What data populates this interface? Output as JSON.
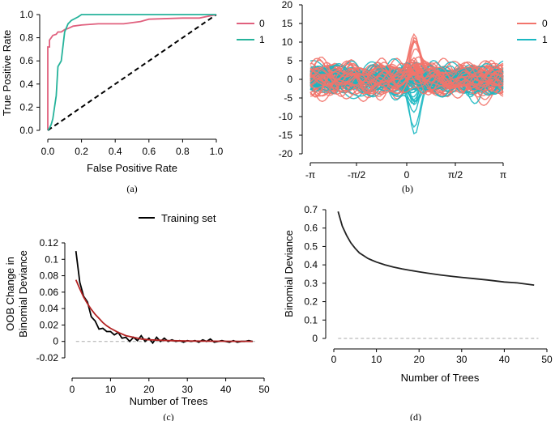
{
  "chart_data": [
    {
      "id": "a",
      "type": "line",
      "caption": "(a)",
      "xlabel": "False Positive Rate",
      "ylabel": "True Positive Rate",
      "xlim": [
        0,
        1
      ],
      "ylim": [
        0,
        1
      ],
      "xticks": [
        "0.0",
        "0.2",
        "0.4",
        "0.6",
        "0.8",
        "1.0"
      ],
      "yticks": [
        "0.0",
        "0.2",
        "0.4",
        "0.6",
        "0.8",
        "1.0"
      ],
      "legend": [
        "0",
        "1"
      ],
      "colors": {
        "0": "#e0607e",
        "1": "#26b39b",
        "diagonal": "#000000"
      },
      "series": [
        {
          "name": "0",
          "x": [
            0,
            0,
            0.01,
            0.01,
            0.02,
            0.03,
            0.05,
            0.06,
            0.08,
            0.1,
            0.12,
            0.15,
            0.2,
            0.3,
            0.45,
            0.55,
            0.6,
            0.8,
            0.9,
            1.0
          ],
          "y": [
            0,
            0.72,
            0.72,
            0.78,
            0.8,
            0.82,
            0.83,
            0.85,
            0.85,
            0.87,
            0.88,
            0.9,
            0.91,
            0.92,
            0.92,
            0.94,
            0.96,
            0.97,
            0.97,
            1.0
          ]
        },
        {
          "name": "1",
          "x": [
            0,
            0.01,
            0.02,
            0.03,
            0.04,
            0.05,
            0.06,
            0.08,
            0.1,
            0.12,
            0.14,
            0.18,
            0.2,
            0.25,
            0.3,
            1.0
          ],
          "y": [
            0,
            0.02,
            0.05,
            0.1,
            0.2,
            0.3,
            0.55,
            0.6,
            0.85,
            0.92,
            0.95,
            0.98,
            1.0,
            1.0,
            1.0,
            1.0
          ]
        }
      ]
    },
    {
      "id": "b",
      "type": "line",
      "caption": "(b)",
      "xticks": [
        "-π",
        "-π/2",
        "0",
        "π/2",
        "π"
      ],
      "ylim": [
        -20,
        20
      ],
      "yticks": [
        "-20",
        "-15",
        "-10",
        "-5",
        "0",
        "5",
        "10",
        "15",
        "20"
      ],
      "legend": [
        "0",
        "1"
      ],
      "colors": {
        "0": "#f2746c",
        "1": "#1bb8c2"
      },
      "note": "Overlaid family of curves for two classes; class 0 spikes near +15 just right of 0, class 1 dips near -15."
    },
    {
      "id": "c",
      "type": "line",
      "caption": "(c)",
      "xlabel": "Number of Trees",
      "ylabel": "OOB Change in Binomial Deviance",
      "xlim": [
        0,
        50
      ],
      "ylim": [
        -0.02,
        0.12
      ],
      "xticks": [
        "0",
        "10",
        "20",
        "30",
        "40",
        "50"
      ],
      "yticks": [
        "-0.02",
        "0",
        "0.02",
        "0.04",
        "0.06",
        "0.08",
        "0.1",
        "0.12"
      ],
      "legend": [
        "Training set"
      ],
      "series": [
        {
          "name": "Training set",
          "color": "#000000",
          "x": [
            1,
            2,
            3,
            4,
            5,
            6,
            7,
            8,
            9,
            10,
            11,
            12,
            13,
            14,
            15,
            16,
            17,
            18,
            19,
            20,
            21,
            22,
            23,
            24,
            25,
            26,
            27,
            28,
            29,
            30,
            31,
            32,
            33,
            34,
            35,
            36,
            37,
            38,
            39,
            40,
            41,
            42,
            43,
            44,
            45,
            46,
            47
          ],
          "y": [
            0.11,
            0.072,
            0.055,
            0.048,
            0.03,
            0.025,
            0.015,
            0.016,
            0.012,
            0.012,
            0.008,
            0.011,
            0.004,
            0.005,
            0.0,
            0.005,
            0.001,
            0.007,
            0.0,
            0.004,
            -0.002,
            0.005,
            0.0,
            0.004,
            0.0,
            0.002,
            0.0,
            0.001,
            -0.001,
            0.001,
            0.0,
            0.001,
            -0.001,
            0.002,
            0.0,
            0.003,
            -0.001,
            0.0,
            0.001,
            0.0,
            -0.001,
            0.001,
            -0.001,
            0.0,
            0.0,
            0.001,
            0.0
          ]
        },
        {
          "name": "Fitted curve",
          "color": "#b22222",
          "x": [
            1,
            2,
            3,
            4,
            5,
            6,
            7,
            8,
            9,
            10,
            12,
            14,
            16,
            18,
            20,
            25,
            30,
            35,
            40,
            45,
            47
          ],
          "y": [
            0.075,
            0.064,
            0.054,
            0.046,
            0.039,
            0.033,
            0.028,
            0.023,
            0.019,
            0.016,
            0.011,
            0.007,
            0.005,
            0.003,
            0.002,
            0.001,
            0.0005,
            0.0003,
            0.0002,
            0.0001,
            0.0
          ]
        }
      ],
      "reference_line": 0
    },
    {
      "id": "d",
      "type": "line",
      "caption": "(d)",
      "xlabel": "Number of Trees",
      "ylabel": "Binomial Deviance",
      "xlim": [
        0,
        50
      ],
      "ylim": [
        0,
        0.7
      ],
      "xticks": [
        "0",
        "10",
        "20",
        "30",
        "40",
        "50"
      ],
      "yticks": [
        "0",
        "0.1",
        "0.2",
        "0.3",
        "0.4",
        "0.5",
        "0.6",
        "0.7"
      ],
      "series": [
        {
          "name": "Binomial Deviance",
          "color": "#222222",
          "x": [
            1,
            2,
            3,
            4,
            5,
            6,
            7,
            8,
            9,
            10,
            12,
            14,
            16,
            18,
            20,
            22,
            25,
            28,
            30,
            33,
            36,
            40,
            43,
            47
          ],
          "y": [
            0.69,
            0.61,
            0.56,
            0.52,
            0.49,
            0.465,
            0.45,
            0.435,
            0.425,
            0.415,
            0.4,
            0.388,
            0.378,
            0.37,
            0.362,
            0.355,
            0.345,
            0.337,
            0.332,
            0.325,
            0.318,
            0.307,
            0.302,
            0.29
          ]
        }
      ],
      "reference_line": 0
    }
  ]
}
